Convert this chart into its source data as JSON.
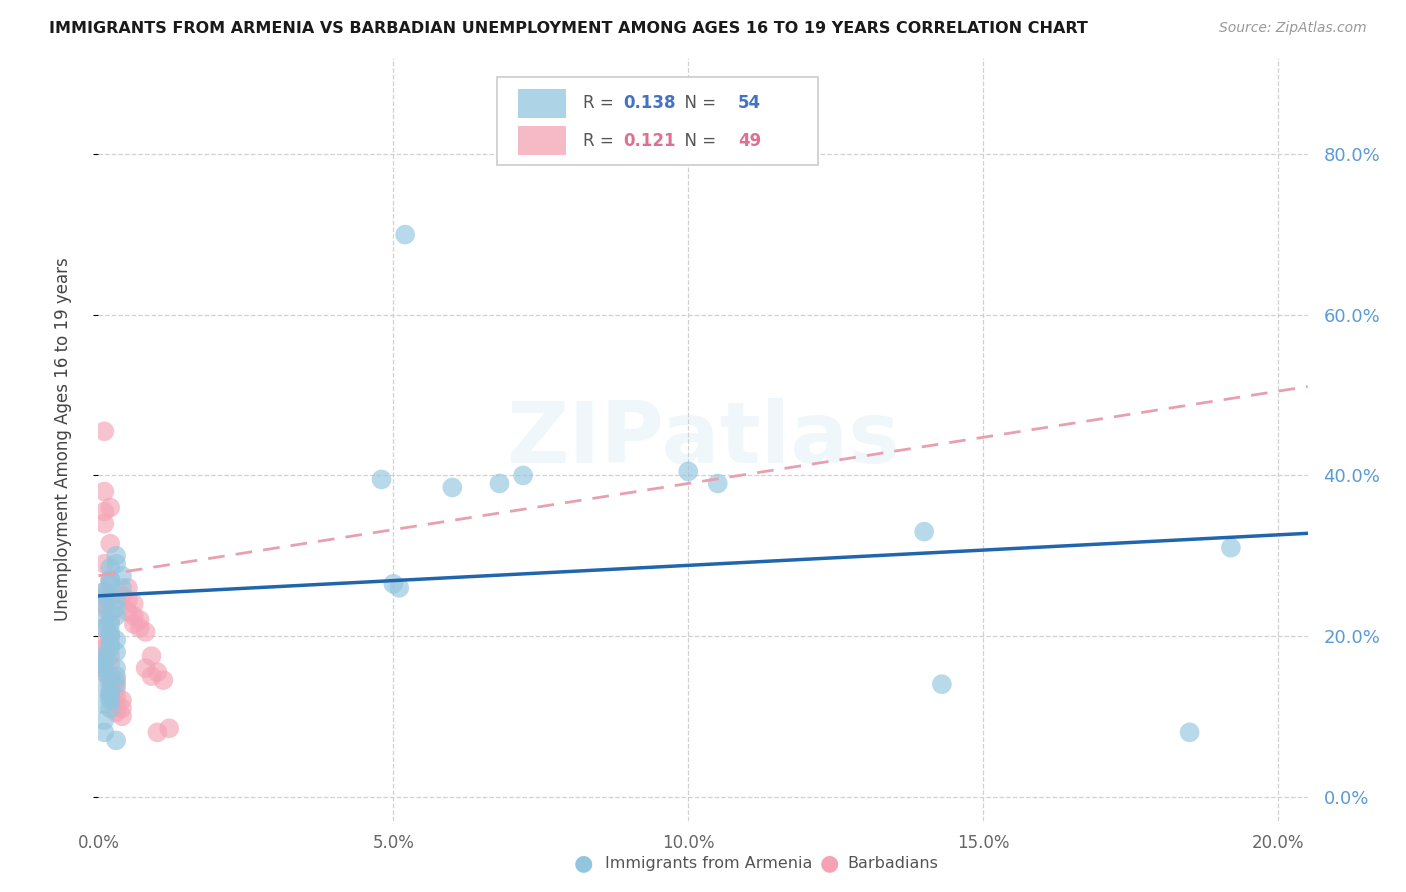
{
  "title": "IMMIGRANTS FROM ARMENIA VS BARBADIAN UNEMPLOYMENT AMONG AGES 16 TO 19 YEARS CORRELATION CHART",
  "source": "Source: ZipAtlas.com",
  "ylabel": "Unemployment Among Ages 16 to 19 years",
  "xlim": [
    0.0,
    0.205
  ],
  "ylim": [
    -0.03,
    0.92
  ],
  "series1_name": "Immigrants from Armenia",
  "series1_color": "#92c5de",
  "series1_R": 0.138,
  "series1_N": 54,
  "series2_name": "Barbadians",
  "series2_color": "#f4a3b5",
  "series2_R": 0.121,
  "series2_N": 49,
  "line1_color": "#2166ac",
  "line2_color": "#d6604d",
  "line2_dash_color": "#e8a0b0",
  "background_color": "#ffffff",
  "grid_color": "#cccccc",
  "right_axis_color": "#5b9bd5",
  "r_val_color_blue": "#4472c4",
  "r_val_color_pink": "#e07090",
  "n_val_color_blue": "#4472c4",
  "n_val_color_pink": "#e07090",
  "armenia_x": [
    0.001,
    0.002,
    0.001,
    0.003,
    0.002,
    0.001,
    0.002,
    0.003,
    0.001,
    0.002,
    0.001,
    0.003,
    0.002,
    0.001,
    0.002,
    0.001,
    0.003,
    0.002,
    0.001,
    0.002,
    0.003,
    0.001,
    0.002,
    0.001,
    0.003,
    0.002,
    0.001,
    0.002,
    0.001,
    0.003,
    0.004,
    0.003,
    0.002,
    0.004,
    0.003,
    0.002,
    0.001,
    0.003,
    0.002,
    0.001,
    0.003,
    0.052,
    0.048,
    0.1,
    0.105,
    0.14,
    0.143,
    0.185,
    0.192,
    0.068,
    0.072,
    0.06,
    0.05,
    0.051
  ],
  "armenia_y": [
    0.255,
    0.27,
    0.25,
    0.29,
    0.285,
    0.24,
    0.265,
    0.3,
    0.22,
    0.23,
    0.21,
    0.195,
    0.185,
    0.175,
    0.2,
    0.165,
    0.245,
    0.215,
    0.16,
    0.205,
    0.18,
    0.155,
    0.19,
    0.17,
    0.225,
    0.145,
    0.135,
    0.125,
    0.115,
    0.14,
    0.26,
    0.235,
    0.11,
    0.275,
    0.15,
    0.13,
    0.095,
    0.16,
    0.12,
    0.08,
    0.07,
    0.7,
    0.395,
    0.405,
    0.39,
    0.33,
    0.14,
    0.08,
    0.31,
    0.39,
    0.4,
    0.385,
    0.265,
    0.26
  ],
  "barbadian_x": [
    0.001,
    0.001,
    0.001,
    0.002,
    0.001,
    0.002,
    0.001,
    0.002,
    0.001,
    0.001,
    0.002,
    0.001,
    0.002,
    0.001,
    0.002,
    0.001,
    0.001,
    0.002,
    0.001,
    0.002,
    0.001,
    0.002,
    0.003,
    0.002,
    0.003,
    0.002,
    0.003,
    0.004,
    0.003,
    0.004,
    0.003,
    0.004,
    0.005,
    0.004,
    0.005,
    0.006,
    0.005,
    0.006,
    0.007,
    0.006,
    0.007,
    0.008,
    0.009,
    0.008,
    0.01,
    0.009,
    0.011,
    0.012,
    0.01
  ],
  "barbadian_y": [
    0.455,
    0.38,
    0.355,
    0.36,
    0.34,
    0.315,
    0.29,
    0.27,
    0.255,
    0.24,
    0.25,
    0.235,
    0.22,
    0.21,
    0.2,
    0.19,
    0.185,
    0.175,
    0.17,
    0.165,
    0.155,
    0.15,
    0.145,
    0.14,
    0.135,
    0.13,
    0.125,
    0.12,
    0.115,
    0.11,
    0.105,
    0.1,
    0.26,
    0.25,
    0.245,
    0.24,
    0.23,
    0.225,
    0.22,
    0.215,
    0.21,
    0.205,
    0.175,
    0.16,
    0.155,
    0.15,
    0.145,
    0.085,
    0.08
  ]
}
